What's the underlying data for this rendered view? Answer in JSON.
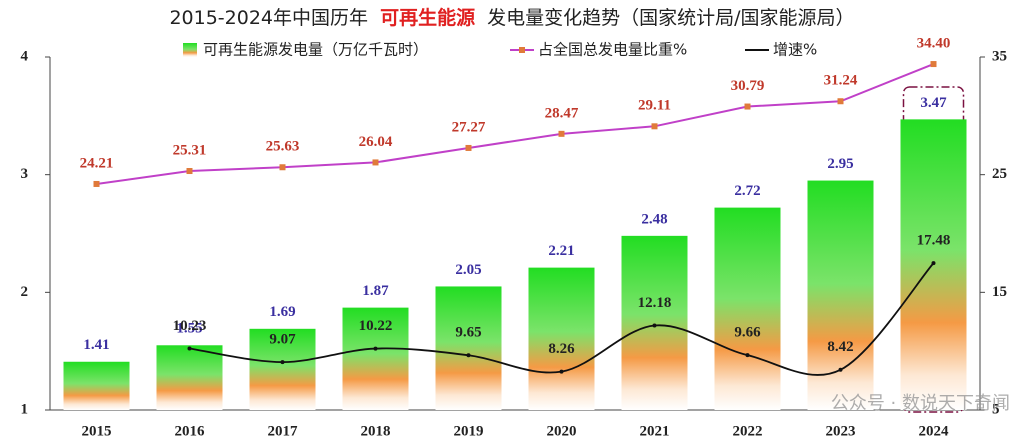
{
  "chart_data": {
    "type": "bar-line",
    "title": [
      "2015-2024年中国历年",
      "可再生能源",
      "发电量变化趋势（国家统计局/国家能源局）"
    ],
    "watermark": "公众号 · 数说天下奇闻",
    "categories": [
      "2015",
      "2016",
      "2017",
      "2018",
      "2019",
      "2020",
      "2021",
      "2022",
      "2023",
      "2024"
    ],
    "ylim": [
      1,
      4
    ],
    "yticks": [
      1,
      2,
      3,
      4
    ],
    "y2lim": [
      5,
      35
    ],
    "y2ticks": [
      5,
      15,
      25,
      35
    ],
    "series": [
      {
        "name": "可再生能源发电量（万亿千瓦时）",
        "type": "bar",
        "color": "#2ecc40",
        "label_color": "#3a2fa0",
        "values": [
          1.41,
          1.55,
          1.69,
          1.87,
          2.05,
          2.21,
          2.48,
          2.72,
          2.95,
          3.47
        ]
      },
      {
        "name": "占全国总发电量比重%",
        "type": "line",
        "axis": "y2",
        "color": "#c040c8",
        "marker_color": "#e07a3a",
        "label_color": "#c0392b",
        "values": [
          24.21,
          25.31,
          25.63,
          26.04,
          27.27,
          28.47,
          29.11,
          30.79,
          31.24,
          34.4
        ],
        "value_labels": [
          "24.21",
          "25.31",
          "25.63",
          "26.04",
          "27.27",
          "28.47",
          "29.11",
          "30.79",
          "31.24",
          "34.40"
        ]
      },
      {
        "name": "增速%",
        "type": "smooth",
        "axis": "y2",
        "color": "#111111",
        "label_color": "#222222",
        "values": [
          null,
          10.23,
          9.07,
          10.22,
          9.65,
          8.26,
          12.18,
          9.66,
          8.42,
          17.48
        ]
      }
    ]
  }
}
